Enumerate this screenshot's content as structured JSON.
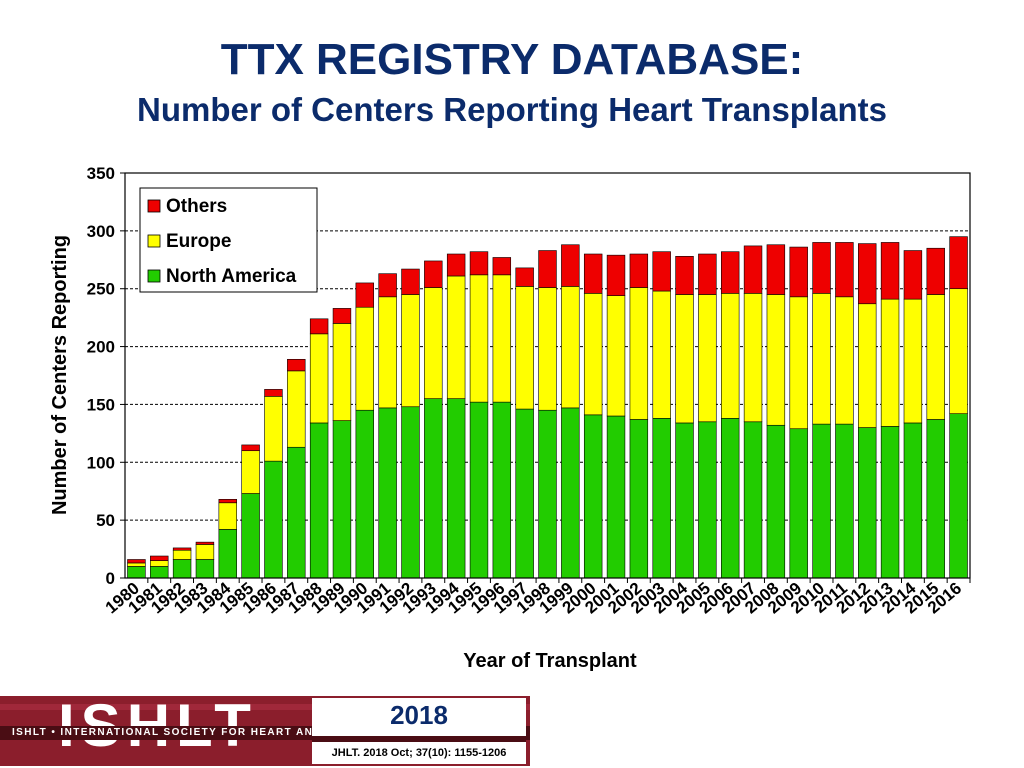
{
  "title": "TTX REGISTRY DATABASE:",
  "subtitle": "Number of Centers Reporting Heart Transplants",
  "chart_data": {
    "type": "bar",
    "stacked": true,
    "xlabel": "Year of Transplant",
    "ylabel": "Number of Centers Reporting",
    "ylim": [
      0,
      350
    ],
    "yticks": [
      0,
      50,
      100,
      150,
      200,
      250,
      300,
      350
    ],
    "grid": true,
    "legend_position": "top-left",
    "categories": [
      "1980",
      "1981",
      "1982",
      "1983",
      "1984",
      "1985",
      "1986",
      "1987",
      "1988",
      "1989",
      "1990",
      "1991",
      "1992",
      "1993",
      "1994",
      "1995",
      "1996",
      "1997",
      "1998",
      "1999",
      "2000",
      "2001",
      "2002",
      "2003",
      "2004",
      "2005",
      "2006",
      "2007",
      "2008",
      "2009",
      "2010",
      "2011",
      "2012",
      "2013",
      "2014",
      "2015",
      "2016"
    ],
    "series": [
      {
        "name": "North America",
        "color": "#22cc00",
        "values": [
          10,
          10,
          16,
          16,
          42,
          73,
          101,
          113,
          134,
          136,
          145,
          147,
          148,
          155,
          155,
          152,
          152,
          146,
          145,
          147,
          141,
          140,
          137,
          138,
          134,
          135,
          138,
          135,
          132,
          129,
          133,
          133,
          130,
          131,
          134,
          137,
          142
        ]
      },
      {
        "name": "Europe",
        "color": "#ffff00",
        "values": [
          3,
          5,
          8,
          13,
          23,
          37,
          56,
          66,
          77,
          84,
          89,
          96,
          97,
          96,
          106,
          110,
          110,
          106,
          106,
          105,
          105,
          104,
          114,
          110,
          111,
          110,
          108,
          111,
          113,
          114,
          113,
          110,
          107,
          110,
          107,
          108,
          108
        ]
      },
      {
        "name": "Others",
        "color": "#ee0000",
        "values": [
          3,
          4,
          2,
          2,
          3,
          5,
          6,
          10,
          13,
          13,
          21,
          20,
          22,
          23,
          19,
          20,
          15,
          16,
          32,
          36,
          34,
          35,
          29,
          34,
          33,
          35,
          36,
          41,
          43,
          43,
          44,
          47,
          52,
          49,
          42,
          40,
          45
        ]
      }
    ]
  },
  "footer": {
    "logo_text": "ISHLT",
    "logo_subtext": "ISHLT • INTERNATIONAL SOCIETY FOR HEART AND LUNG TRANSPLANTATION",
    "year": "2018",
    "citation": "JHLT. 2018 Oct; 37(10): 1155-1206"
  }
}
